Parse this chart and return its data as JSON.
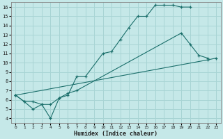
{
  "xlabel": "Humidex (Indice chaleur)",
  "xlim": [
    -0.5,
    23.5
  ],
  "ylim": [
    3.5,
    16.5
  ],
  "xticks": [
    0,
    1,
    2,
    3,
    4,
    5,
    6,
    7,
    8,
    9,
    10,
    11,
    12,
    13,
    14,
    15,
    16,
    17,
    18,
    19,
    20,
    21,
    22,
    23
  ],
  "yticks": [
    4,
    5,
    6,
    7,
    8,
    9,
    10,
    11,
    12,
    13,
    14,
    15,
    16
  ],
  "bg_color": "#c5e8e8",
  "grid_color": "#a8d4d4",
  "line_color": "#1a6e6a",
  "line1_x": [
    0,
    1,
    2,
    3,
    4,
    5,
    6,
    7,
    8,
    10,
    11,
    12,
    13,
    14,
    15,
    16,
    17,
    18,
    19,
    20
  ],
  "line1_y": [
    6.5,
    5.8,
    5.8,
    5.5,
    4.0,
    6.2,
    6.5,
    8.5,
    8.5,
    11.0,
    11.2,
    12.5,
    13.8,
    15.0,
    15.0,
    16.2,
    16.2,
    16.2,
    16.0,
    16.0
  ],
  "line2_x": [
    0,
    1,
    2,
    3,
    4,
    5,
    6,
    7,
    19,
    20,
    21,
    22
  ],
  "line2_y": [
    6.5,
    5.8,
    5.0,
    5.5,
    5.5,
    6.2,
    6.7,
    7.0,
    13.2,
    12.0,
    10.8,
    10.5
  ],
  "line3_x": [
    0,
    22,
    23
  ],
  "line3_y": [
    6.5,
    10.3,
    10.5
  ]
}
